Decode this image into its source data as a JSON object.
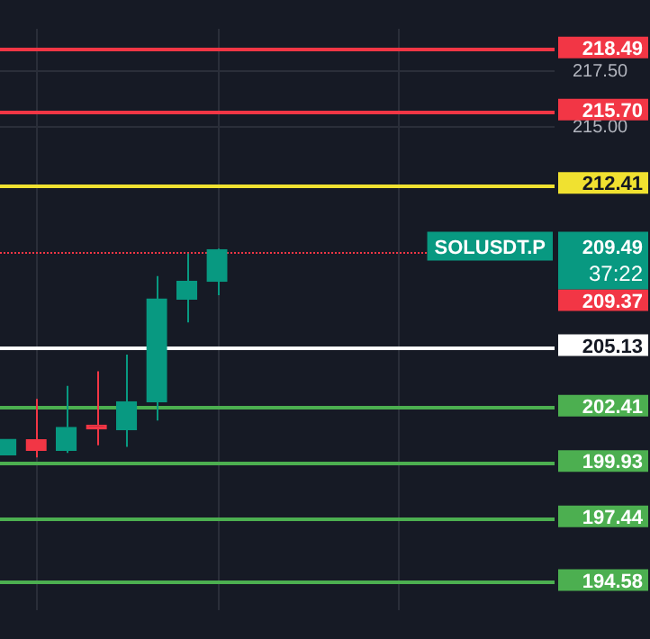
{
  "chart_data": {
    "type": "candlestick",
    "categories": [
      null,
      null,
      null,
      null,
      null,
      null,
      null,
      null,
      null,
      null,
      null,
      null,
      null,
      null,
      null,
      null,
      null,
      null,
      null
    ],
    "colors": [
      "#089981",
      "#f23645",
      "#089981",
      "#f23645",
      "#089981",
      "#089981",
      "#089981",
      "#089981",
      null,
      null,
      null,
      null,
      null,
      null,
      null,
      null,
      null,
      null,
      null
    ],
    "ohlc": [
      [
        200.29,
        200.98,
        200.29,
        200.98
      ],
      [
        200.96,
        202.79,
        200.17,
        200.49
      ],
      [
        200.49,
        203.38,
        200.37,
        201.52
      ],
      [
        201.62,
        204.04,
        200.71,
        201.45
      ],
      [
        201.42,
        204.78,
        200.64,
        202.67
      ],
      [
        202.67,
        208.31,
        201.82,
        207.28
      ],
      [
        207.28,
        209.32,
        206.23,
        208.07
      ],
      [
        208.07,
        209.54,
        207.45,
        209.49
      ],
      null,
      null,
      null,
      null,
      null,
      null,
      null,
      null,
      null,
      null,
      null
    ],
    "ylim": [
      193.31,
      219.41
    ],
    "yticks": [
      {
        "value": 217.5,
        "label": "217.50"
      },
      {
        "value": 215,
        "label": "215.00"
      }
    ],
    "grid": true,
    "tick_labels": "y",
    "ref_lines": [
      {
        "axis": "y",
        "value": 218.49,
        "label": "218.49",
        "color": "#f23645"
      },
      {
        "axis": "y",
        "value": 215.7,
        "label": "215.70",
        "color": "#f23645"
      },
      {
        "axis": "y",
        "value": 212.41,
        "label": "212.41",
        "color": "#f0e130"
      },
      {
        "axis": "y",
        "value": 209.37,
        "label": "209.37",
        "color": "#f23645",
        "line_style": "dotted"
      },
      {
        "axis": "y",
        "value": 205.13,
        "label": "205.13",
        "color": "#ffffff"
      },
      {
        "axis": "y",
        "value": 202.41,
        "label": "202.41",
        "color": "#4caf50"
      },
      {
        "axis": "y",
        "value": 199.93,
        "label": "199.93",
        "color": "#4caf50"
      },
      {
        "axis": "y",
        "value": 197.44,
        "label": "197.44",
        "color": "#4caf50"
      },
      {
        "axis": "y",
        "value": 194.58,
        "label": "194.58",
        "color": "#4caf50"
      }
    ],
    "annotations": [
      "SOLUSDT.P",
      "209.49",
      "37:22"
    ]
  }
}
